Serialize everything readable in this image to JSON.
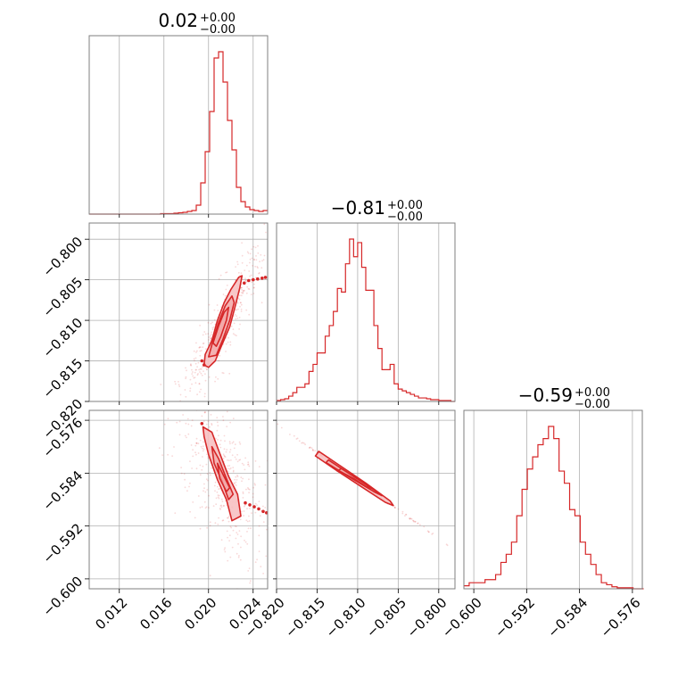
{
  "colors": {
    "series": "#d62728",
    "fill": "#f7c1c2",
    "grid": "#b0b0b0",
    "frame": "#7f7f7f"
  },
  "chart_data": {
    "type": "corner",
    "grid": true,
    "parameters": [
      {
        "title_value": "0.02",
        "title_plus": "+0.00",
        "title_minus": "−0.00",
        "range": [
          0.0093,
          0.0253
        ],
        "ticks": [
          "0.012",
          "0.016",
          "0.020",
          "0.024"
        ],
        "tick_values": [
          0.012,
          0.016,
          0.02,
          0.024
        ]
      },
      {
        "title_value": "−0.81",
        "title_plus": "+0.00",
        "title_minus": "−0.00",
        "range": [
          -0.82,
          -0.798
        ],
        "ticks": [
          "−0.820",
          "−0.815",
          "−0.810",
          "−0.805",
          "−0.800"
        ],
        "tick_values": [
          -0.82,
          -0.815,
          -0.81,
          -0.805,
          -0.8
        ]
      },
      {
        "title_value": "−0.59",
        "title_plus": "+0.00",
        "title_minus": "−0.00",
        "range": [
          -0.6015,
          -0.5745
        ],
        "ticks": [
          "−0.600",
          "−0.592",
          "−0.584",
          "−0.576"
        ],
        "tick_values": [
          -0.6,
          -0.592,
          -0.584,
          -0.576
        ]
      }
    ],
    "histograms": [
      {
        "parameter": 0,
        "bin_width": 0.0004,
        "bin_starts": [
          0.0093,
          0.0097,
          0.0101,
          0.0105,
          0.0109,
          0.0113,
          0.0117,
          0.0121,
          0.0125,
          0.0129,
          0.0133,
          0.0137,
          0.0141,
          0.0145,
          0.0149,
          0.0153,
          0.0157,
          0.0161,
          0.0165,
          0.0169,
          0.0173,
          0.0177,
          0.0181,
          0.0185,
          0.0189,
          0.0193,
          0.0197,
          0.0201,
          0.0205,
          0.0209,
          0.0213,
          0.0217,
          0.0221,
          0.0225,
          0.0229,
          0.0233,
          0.0237,
          0.0241,
          0.0245,
          0.0249
        ],
        "counts": [
          0,
          0,
          0,
          0,
          0,
          0,
          0,
          0,
          0,
          0,
          0,
          0,
          0,
          0,
          0,
          0,
          0.5,
          0.5,
          0.5,
          1,
          1.5,
          2,
          3,
          4,
          10,
          35,
          70,
          115,
          175,
          182,
          148,
          105,
          72,
          30,
          14,
          8,
          5,
          4,
          3,
          4
        ]
      },
      {
        "parameter": 1,
        "bin_width": 0.0005,
        "bin_starts": [
          -0.82,
          -0.8195,
          -0.819,
          -0.8185,
          -0.818,
          -0.8175,
          -0.817,
          -0.8165,
          -0.816,
          -0.8155,
          -0.815,
          -0.8145,
          -0.814,
          -0.8135,
          -0.813,
          -0.8125,
          -0.812,
          -0.8115,
          -0.811,
          -0.8105,
          -0.81,
          -0.8095,
          -0.809,
          -0.8085,
          -0.808,
          -0.8075,
          -0.807,
          -0.8065,
          -0.806,
          -0.8055,
          -0.805,
          -0.8045,
          -0.804,
          -0.8035,
          -0.803,
          -0.8025,
          -0.802,
          -0.8015,
          -0.801,
          -0.8005,
          -0.8,
          -0.7995,
          -0.799,
          -0.7985
        ],
        "counts": [
          1,
          2,
          3,
          6,
          10,
          16,
          16,
          20,
          34,
          42,
          55,
          55,
          74,
          86,
          102,
          128,
          124,
          156,
          184,
          164,
          180,
          152,
          126,
          126,
          86,
          60,
          36,
          36,
          42,
          20,
          14,
          12,
          10,
          8,
          6,
          4,
          4,
          3,
          2,
          2,
          1,
          1,
          1,
          0
        ]
      },
      {
        "parameter": 2,
        "bin_width": 0.0008,
        "bin_starts": [
          -0.6015,
          -0.6007,
          -0.5999,
          -0.5991,
          -0.5983,
          -0.5975,
          -0.5967,
          -0.5959,
          -0.5951,
          -0.5943,
          -0.5935,
          -0.5927,
          -0.5919,
          -0.5911,
          -0.5903,
          -0.5895,
          -0.5887,
          -0.5879,
          -0.5871,
          -0.5863,
          -0.5855,
          -0.5847,
          -0.5839,
          -0.5831,
          -0.5823,
          -0.5815,
          -0.5807,
          -0.5799,
          -0.5791,
          -0.5783,
          -0.5775,
          -0.5767,
          -0.5759,
          -0.5751
        ],
        "counts": [
          3,
          6,
          6,
          6,
          9,
          9,
          14,
          26,
          34,
          46,
          72,
          98,
          118,
          130,
          142,
          148,
          160,
          148,
          116,
          104,
          78,
          72,
          46,
          34,
          24,
          14,
          6,
          4,
          2,
          1,
          1,
          1,
          0,
          0
        ]
      }
    ],
    "joint": [
      {
        "x_param": 0,
        "y_param": 1,
        "orientation": "increasing",
        "contour_levels": [
          {
            "level": 1,
            "points": [
              [
                0.0196,
                -0.8155
              ],
              [
                0.0197,
                -0.8142
              ],
              [
                0.0203,
                -0.8125
              ],
              [
                0.0208,
                -0.81
              ],
              [
                0.0214,
                -0.8078
              ],
              [
                0.022,
                -0.8062
              ],
              [
                0.0227,
                -0.8047
              ],
              [
                0.023,
                -0.8045
              ],
              [
                0.0228,
                -0.806
              ],
              [
                0.0224,
                -0.8082
              ],
              [
                0.0219,
                -0.8108
              ],
              [
                0.0212,
                -0.813
              ],
              [
                0.0206,
                -0.815
              ],
              [
                0.02,
                -0.8158
              ]
            ]
          },
          {
            "level": 2,
            "points": [
              [
                0.02,
                -0.8145
              ],
              [
                0.0204,
                -0.8125
              ],
              [
                0.0209,
                -0.8103
              ],
              [
                0.0215,
                -0.8082
              ],
              [
                0.0221,
                -0.807
              ],
              [
                0.0223,
                -0.8078
              ],
              [
                0.0219,
                -0.81
              ],
              [
                0.0213,
                -0.8123
              ],
              [
                0.0207,
                -0.8143
              ]
            ]
          },
          {
            "level": 3,
            "points": [
              [
                0.0204,
                -0.8128
              ],
              [
                0.0209,
                -0.8107
              ],
              [
                0.0214,
                -0.809
              ],
              [
                0.0218,
                -0.8084
              ],
              [
                0.0216,
                -0.81
              ],
              [
                0.0211,
                -0.812
              ],
              [
                0.0207,
                -0.8132
              ]
            ]
          }
        ],
        "outlier_points": [
          [
            0.0232,
            -0.8054
          ],
          [
            0.0236,
            -0.8051
          ],
          [
            0.024,
            -0.805
          ],
          [
            0.0244,
            -0.8049
          ],
          [
            0.0248,
            -0.8048
          ],
          [
            0.0251,
            -0.8047
          ],
          [
            0.0196,
            -0.8155
          ],
          [
            0.0194,
            -0.815
          ]
        ]
      },
      {
        "x_param": 0,
        "y_param": 2,
        "orientation": "decreasing",
        "contour_levels": [
          {
            "level": 1,
            "points": [
              [
                0.0195,
                -0.577
              ],
              [
                0.0203,
                -0.5778
              ],
              [
                0.021,
                -0.581
              ],
              [
                0.0218,
                -0.5845
              ],
              [
                0.0226,
                -0.5872
              ],
              [
                0.0229,
                -0.5905
              ],
              [
                0.0221,
                -0.5912
              ],
              [
                0.0216,
                -0.588
              ],
              [
                0.0208,
                -0.585
              ],
              [
                0.02,
                -0.5812
              ],
              [
                0.0196,
                -0.5785
              ]
            ]
          },
          {
            "level": 2,
            "points": [
              [
                0.0203,
                -0.58
              ],
              [
                0.0209,
                -0.5818
              ],
              [
                0.0216,
                -0.5848
              ],
              [
                0.0222,
                -0.5872
              ],
              [
                0.0218,
                -0.588
              ],
              [
                0.0212,
                -0.5852
              ],
              [
                0.0205,
                -0.5825
              ]
            ]
          },
          {
            "level": 3,
            "points": [
              [
                0.0208,
                -0.5825
              ],
              [
                0.0213,
                -0.5842
              ],
              [
                0.0219,
                -0.5862
              ],
              [
                0.0216,
                -0.5868
              ],
              [
                0.021,
                -0.5848
              ]
            ]
          }
        ],
        "outlier_points": [
          [
            0.0233,
            -0.5885
          ],
          [
            0.0237,
            -0.5888
          ],
          [
            0.0241,
            -0.5891
          ],
          [
            0.0245,
            -0.5894
          ],
          [
            0.0249,
            -0.5898
          ],
          [
            0.0252,
            -0.59
          ],
          [
            0.0194,
            -0.5765
          ]
        ]
      },
      {
        "x_param": 1,
        "y_param": 2,
        "orientation": "decreasing",
        "contour_levels": [
          {
            "level": 1,
            "points": [
              [
                -0.8148,
                -0.5807
              ],
              [
                -0.812,
                -0.583
              ],
              [
                -0.809,
                -0.5855
              ],
              [
                -0.806,
                -0.5882
              ],
              [
                -0.8056,
                -0.5889
              ],
              [
                -0.8066,
                -0.5884
              ],
              [
                -0.8096,
                -0.586
              ],
              [
                -0.8126,
                -0.5836
              ],
              [
                -0.8152,
                -0.5814
              ]
            ]
          },
          {
            "level": 2,
            "points": [
              [
                -0.8136,
                -0.582
              ],
              [
                -0.8105,
                -0.5845
              ],
              [
                -0.8075,
                -0.5869
              ],
              [
                -0.807,
                -0.5874
              ],
              [
                -0.808,
                -0.5868
              ],
              [
                -0.811,
                -0.5846
              ],
              [
                -0.8139,
                -0.5824
              ]
            ]
          },
          {
            "level": 3,
            "points": [
              [
                -0.812,
                -0.5833
              ],
              [
                -0.8095,
                -0.5853
              ],
              [
                -0.8083,
                -0.5863
              ],
              [
                -0.809,
                -0.586
              ],
              [
                -0.8105,
                -0.5848
              ],
              [
                -0.8124,
                -0.5836
              ]
            ]
          }
        ],
        "outlier_points": []
      }
    ]
  }
}
